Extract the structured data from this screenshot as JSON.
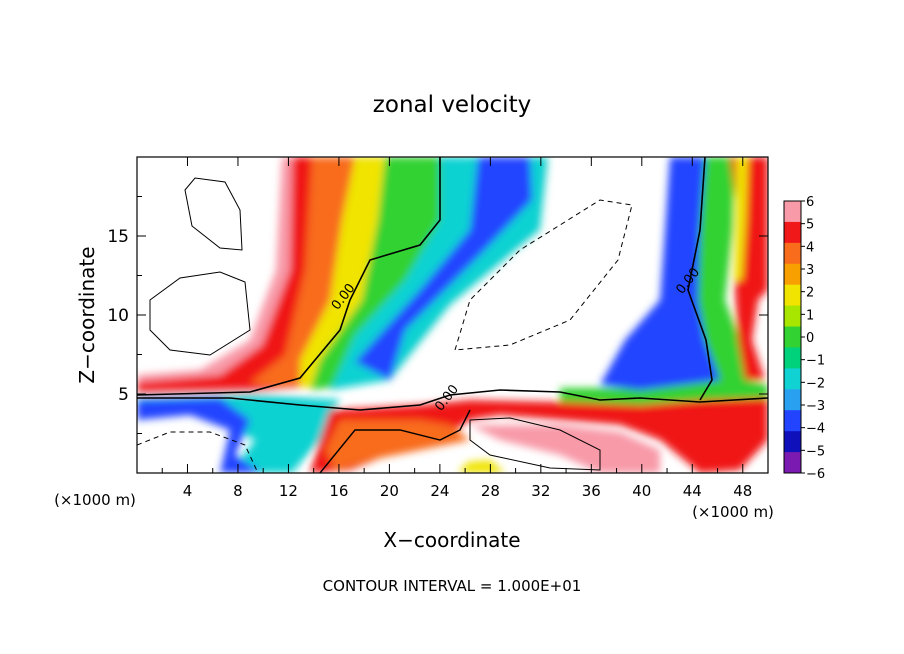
{
  "chart_data": {
    "type": "heatmap",
    "title": "zonal velocity",
    "xlabel": "X−coordinate",
    "ylabel": "Z−coordinate",
    "x_unit_left": "(×1000 m)",
    "x_unit_right": "(×1000 m)",
    "xlim": [
      0,
      50
    ],
    "ylim": [
      0,
      20
    ],
    "x_ticks": [
      4,
      8,
      12,
      16,
      20,
      24,
      28,
      32,
      36,
      40,
      44,
      48
    ],
    "y_ticks": [
      5,
      10,
      15
    ],
    "colorbar": {
      "levels": [
        6,
        5,
        4,
        3,
        2,
        1,
        0,
        -1,
        -2,
        -3,
        -4,
        -5,
        -6
      ],
      "level_labels": [
        "6",
        "5",
        "4",
        "3",
        "2",
        "1",
        "0",
        "−1",
        "−2",
        "−3",
        "−4",
        "−5",
        "−6"
      ],
      "colors": [
        "#f89aa8",
        "#f01818",
        "#f86c1c",
        "#f8a000",
        "#f0e400",
        "#a8e600",
        "#32d232",
        "#00d27c",
        "#10d2d2",
        "#2aa0f0",
        "#2244ff",
        "#1010bb",
        "#7a1ab0"
      ]
    },
    "contour_labels": [
      {
        "text": "0.00",
        "x": 16.6,
        "y": 11.0
      },
      {
        "text": "0.00",
        "x": 24.8,
        "y": 4.6
      },
      {
        "text": "0.00",
        "x": 43.9,
        "y": 12.0
      }
    ],
    "footer": "CONTOUR INTERVAL = 1.000E+01"
  }
}
